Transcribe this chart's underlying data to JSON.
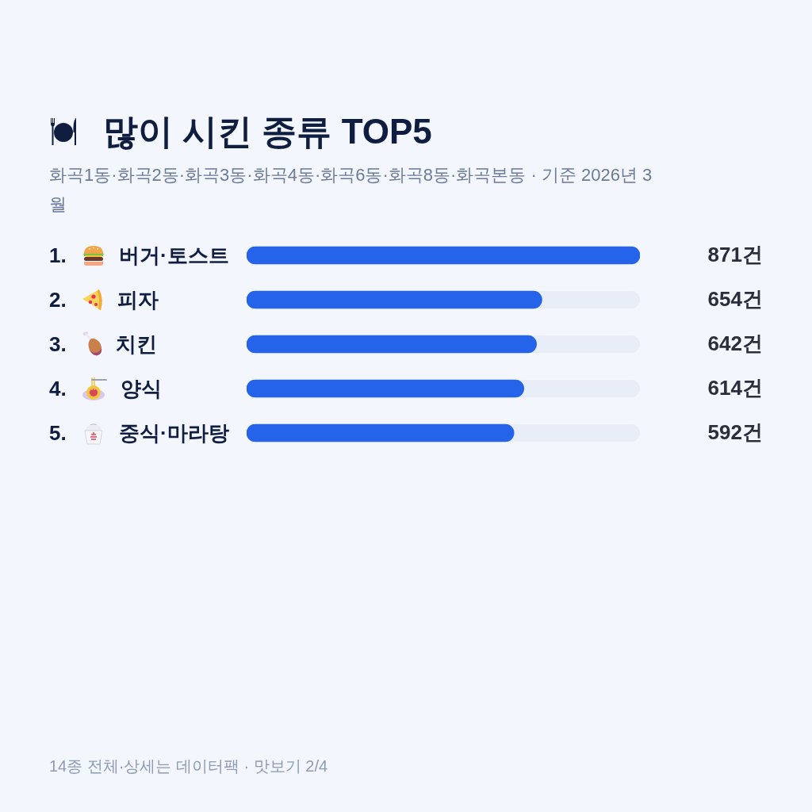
{
  "chart_data": {
    "type": "bar",
    "orientation": "horizontal",
    "title": "많이 시킨 종류 TOP5",
    "subtitle": "화곡1동·화곡2동·화곡3동·화곡4동·화곡6동·화곡8동·화곡본동 · 기준 2026년 3월",
    "categories": [
      "1. 버거·토스트",
      "2. 피자",
      "3. 치킨",
      "4. 양식",
      "5. 중식·마라탕"
    ],
    "values": [
      871,
      654,
      642,
      614,
      592
    ],
    "color": "#2563eb",
    "value_labels": [
      "871건",
      "654건",
      "642건",
      "614건",
      "592건"
    ],
    "xlim": [
      0,
      871
    ],
    "tick_labels": "y",
    "annotations": [
      "14종 전체·상세는 데이터팩 · 맛보기 2/4"
    ]
  }
}
